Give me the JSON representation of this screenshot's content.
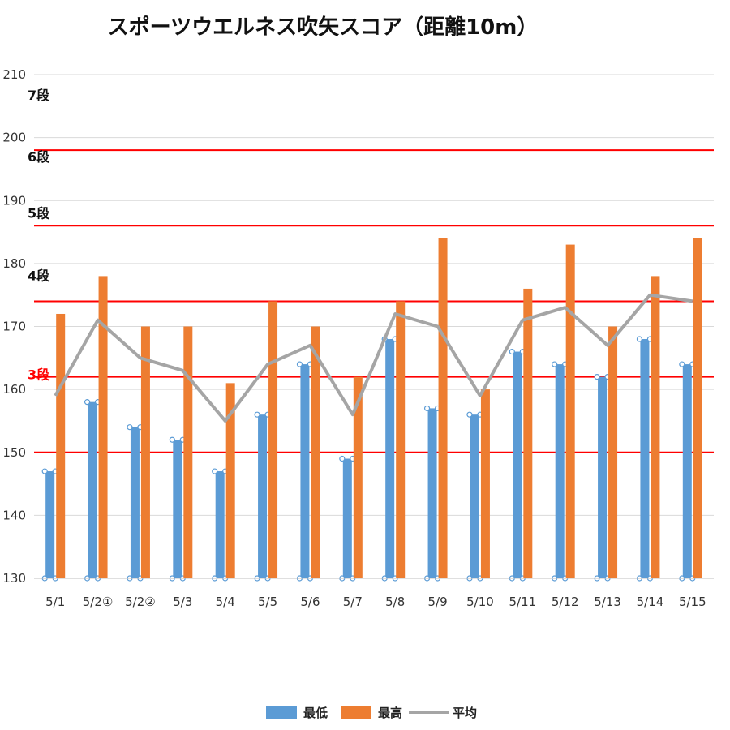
{
  "chart_data": {
    "type": "bar",
    "title": "スポーツウエルネス吹矢スコア（距離10m）",
    "categories": [
      "5/1",
      "5/2①",
      "5/2②",
      "5/3",
      "5/4",
      "5/5",
      "5/6",
      "5/7",
      "5/8",
      "5/9",
      "5/10",
      "5/11",
      "5/12",
      "5/13",
      "5/14",
      "5/15"
    ],
    "series": [
      {
        "name": "最低",
        "kind": "bar",
        "color": "#5B9BD5",
        "values": [
          147,
          158,
          154,
          152,
          147,
          156,
          164,
          149,
          168,
          157,
          156,
          166,
          164,
          162,
          168,
          164
        ]
      },
      {
        "name": "最高",
        "kind": "bar",
        "color": "#ED7D31",
        "values": [
          172,
          178,
          170,
          170,
          161,
          174,
          170,
          162,
          174,
          184,
          160,
          176,
          183,
          170,
          178,
          184
        ]
      },
      {
        "name": "平均",
        "kind": "line",
        "color": "#A5A5A5",
        "values": [
          159,
          171,
          165,
          163,
          155,
          164,
          167,
          156,
          172,
          170,
          159,
          171,
          173,
          167,
          175,
          174
        ]
      }
    ],
    "ylim": [
      130,
      210
    ],
    "yticks": [
      130,
      140,
      150,
      160,
      170,
      180,
      190,
      200,
      210
    ],
    "grid": true,
    "legend_position": "bottom",
    "thresholds": [
      {
        "label": "7段",
        "value": null,
        "label_color": "#111111"
      },
      {
        "label": "6段",
        "value": 198,
        "label_color": "#111111",
        "line_color": "#FF0000"
      },
      {
        "label": "5段",
        "value": 186,
        "label_color": "#111111",
        "line_color": "#FF0000"
      },
      {
        "label": "4段",
        "value": 174,
        "label_color": "#111111",
        "line_color": "#FF0000"
      },
      {
        "label": "3段",
        "value": 162,
        "label_color": "#FF0000",
        "line_color": "#FF0000"
      },
      {
        "label": "",
        "value": 150,
        "line_color": "#FF0000"
      }
    ]
  }
}
